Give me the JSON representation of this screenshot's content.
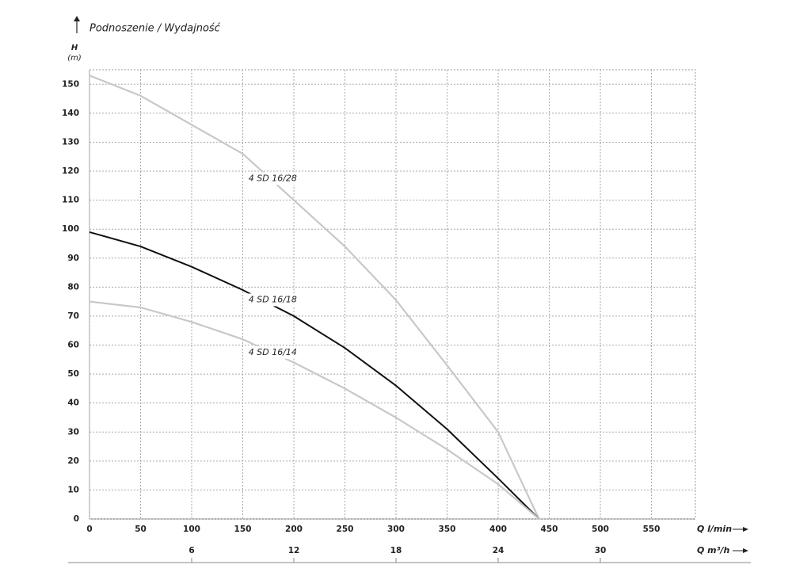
{
  "chart_data": {
    "type": "line",
    "title": "Podnoszenie / Wydajność",
    "y_label": "H",
    "y_unit": "(m)",
    "x_label": "Q l/min",
    "x2_label": "Q m³/h",
    "x": [
      0,
      50,
      100,
      150,
      200,
      250,
      300,
      350,
      400,
      440
    ],
    "series": [
      {
        "name": "4 SD 16/28",
        "color": "#c8c8c8",
        "values": [
          153,
          146,
          136,
          126,
          110,
          94,
          75.5,
          53,
          30,
          0
        ]
      },
      {
        "name": "4 SD 16/18",
        "color": "#111111",
        "values": [
          99,
          94,
          87,
          79,
          70,
          59,
          46,
          31,
          14,
          0
        ]
      },
      {
        "name": "4 SD 16/14",
        "color": "#c8c8c8",
        "values": [
          75,
          73,
          68,
          62,
          54,
          45,
          35,
          24,
          12,
          0
        ]
      }
    ],
    "xlim": [
      0,
      593
    ],
    "xticks": [
      0,
      50,
      100,
      150,
      200,
      250,
      300,
      350,
      400,
      450,
      500,
      550
    ],
    "x2lim": [
      0,
      35.58
    ],
    "x2ticks": [
      6,
      12,
      18,
      24,
      30
    ],
    "ylim": [
      0,
      155
    ],
    "yticks": [
      0,
      10,
      20,
      30,
      40,
      50,
      60,
      70,
      80,
      90,
      100,
      110,
      120,
      130,
      140,
      150
    ],
    "grid": true
  }
}
